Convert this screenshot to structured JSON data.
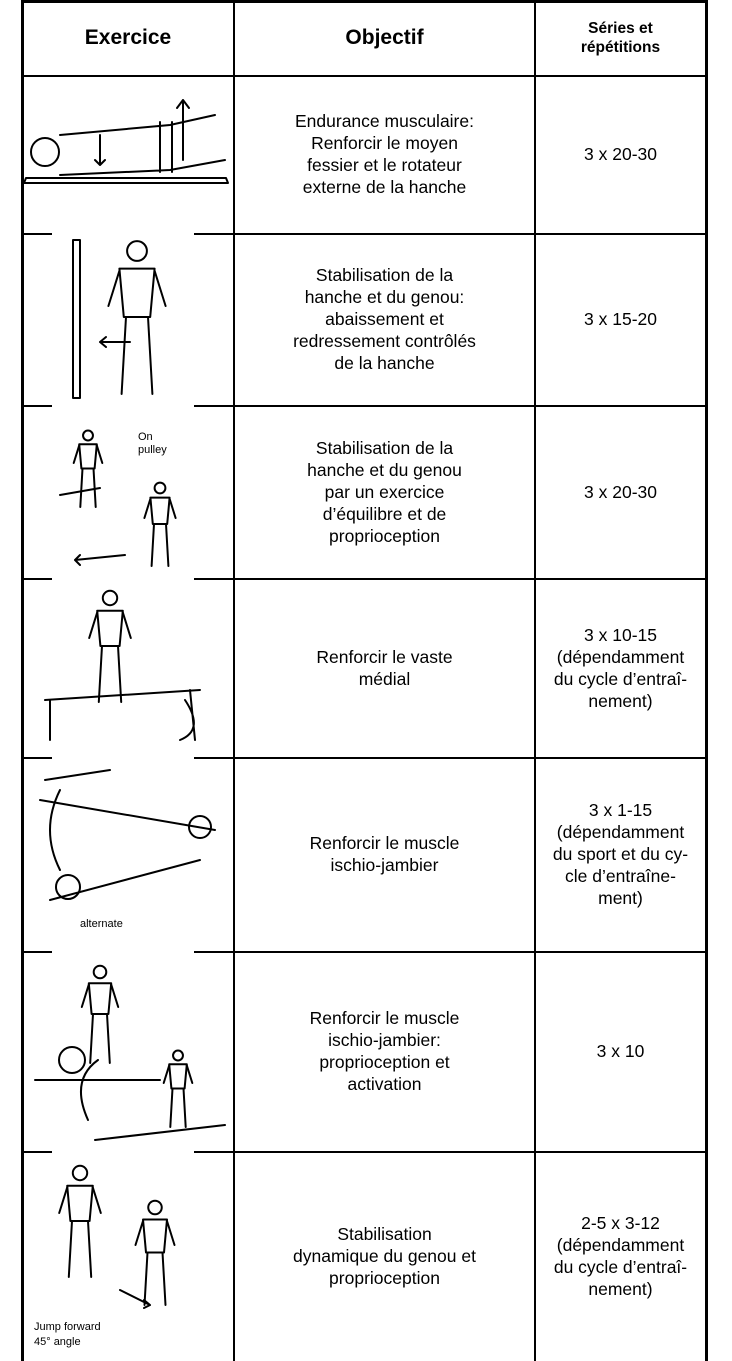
{
  "table": {
    "header": {
      "exercise": "Exercice",
      "objective": "Objectif",
      "sets": [
        "Séries et",
        "répétitions"
      ]
    },
    "rows": [
      {
        "objective": [
          "Endurance musculaire:",
          "Renforcir le moyen",
          "fessier et le rotateur",
          "externe de la hanche"
        ],
        "sets": [
          "3 x 20-30"
        ]
      },
      {
        "objective": [
          "Stabilisation de la",
          "hanche et du genou:",
          "abaissement et",
          "redressement contrôlés",
          "de la hanche"
        ],
        "sets": [
          "3 x 15-20"
        ]
      },
      {
        "objective": [
          "Stabilisation de la",
          "hanche et du genou",
          "par un exercice",
          "d’équilibre et de",
          "proprioception"
        ],
        "sets": [
          "3 x 20-30"
        ],
        "caption": [
          "On",
          "pulley"
        ]
      },
      {
        "objective": [
          "Renforcir le vaste",
          "médial"
        ],
        "sets": [
          "3 x 10-15",
          "(dépendamment",
          "du cycle d’entraî-",
          "nement)"
        ]
      },
      {
        "objective": [
          "Renforcir le muscle",
          "ischio-jambier"
        ],
        "sets": [
          "3 x 1-15",
          "(dépendamment",
          "du sport et du cy-",
          "cle d’entraîne-",
          "ment)"
        ],
        "caption": [
          "alternate"
        ]
      },
      {
        "objective": [
          "Renforcir le muscle",
          "ischio-jambier:",
          "proprioception et",
          "activation"
        ],
        "sets": [
          "3 x 10"
        ]
      },
      {
        "objective": [
          "Stabilisation",
          "dynamique du genou et",
          "proprioception"
        ],
        "sets": [
          "2-5 x 3-12",
          "(dépendamment",
          "du cycle d’entraî-",
          "nement)"
        ],
        "caption": [
          "Jump forward",
          "45° angle"
        ]
      }
    ]
  }
}
